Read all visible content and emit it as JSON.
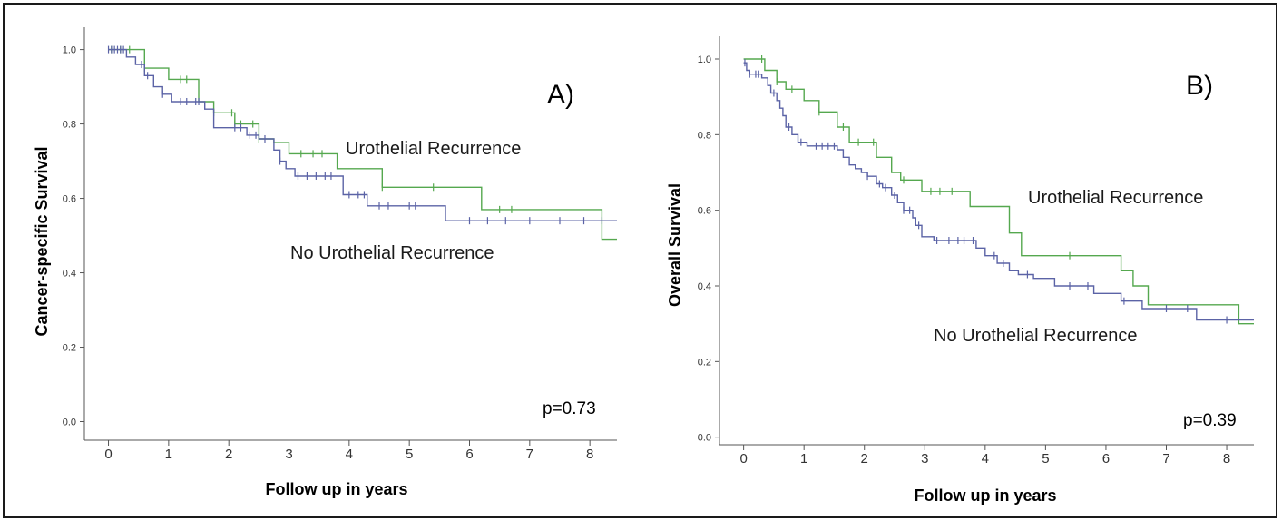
{
  "chart_data": [
    {
      "type": "line",
      "panel_label": "A)",
      "xlabel": "Follow up in years",
      "ylabel": "Cancer-specific Survival",
      "xlim": [
        -0.4,
        8.45
      ],
      "ylim": [
        -0.05,
        1.06
      ],
      "xticks": [
        0,
        1,
        2,
        3,
        4,
        5,
        6,
        7,
        8
      ],
      "yticks": [
        0.0,
        0.2,
        0.4,
        0.6,
        0.8,
        1.0
      ],
      "ytick_labels": [
        "0.0",
        "0.2",
        "0.4",
        "0.6",
        "0.8",
        "1.0"
      ],
      "p_value": "p=0.73",
      "annotations": [
        "Urothelial Recurrence",
        "No Urothelial Recurrence"
      ],
      "series": [
        {
          "color": "#55a84f",
          "steps": [
            [
              0,
              1.0
            ],
            [
              0.6,
              0.95
            ],
            [
              1.0,
              0.92
            ],
            [
              1.5,
              0.86
            ],
            [
              1.75,
              0.83
            ],
            [
              2.1,
              0.8
            ],
            [
              2.5,
              0.76
            ],
            [
              2.75,
              0.75
            ],
            [
              3.0,
              0.72
            ],
            [
              3.8,
              0.68
            ],
            [
              4.55,
              0.63
            ],
            [
              6.2,
              0.57
            ],
            [
              8.2,
              0.49
            ],
            [
              8.45,
              0.49
            ]
          ],
          "censor_x": [
            0.05,
            0.2,
            0.35,
            0.6,
            1.2,
            1.3,
            1.75,
            2.05,
            2.1,
            2.2,
            2.4,
            2.5,
            3.2,
            3.4,
            3.55,
            4.55,
            5.4,
            6.5,
            6.7
          ]
        },
        {
          "color": "#5b63a6",
          "steps": [
            [
              0,
              1.0
            ],
            [
              0.3,
              0.98
            ],
            [
              0.45,
              0.96
            ],
            [
              0.6,
              0.93
            ],
            [
              0.75,
              0.9
            ],
            [
              0.9,
              0.88
            ],
            [
              1.05,
              0.86
            ],
            [
              1.6,
              0.84
            ],
            [
              1.75,
              0.79
            ],
            [
              2.3,
              0.77
            ],
            [
              2.5,
              0.76
            ],
            [
              2.75,
              0.73
            ],
            [
              2.85,
              0.7
            ],
            [
              2.95,
              0.68
            ],
            [
              3.1,
              0.66
            ],
            [
              3.9,
              0.61
            ],
            [
              4.3,
              0.58
            ],
            [
              5.6,
              0.54
            ],
            [
              8.45,
              0.54
            ]
          ],
          "censor_x": [
            0.0,
            0.05,
            0.1,
            0.15,
            0.2,
            0.25,
            0.55,
            0.65,
            0.9,
            1.2,
            1.3,
            1.45,
            1.5,
            2.1,
            2.2,
            2.35,
            2.45,
            2.6,
            2.85,
            3.15,
            3.3,
            3.45,
            3.6,
            3.7,
            4.0,
            4.15,
            4.25,
            4.5,
            4.65,
            5.0,
            5.1,
            6.0,
            6.3,
            6.6,
            7.0,
            7.5,
            7.9,
            8.2
          ]
        }
      ]
    },
    {
      "type": "line",
      "panel_label": "B)",
      "xlabel": "Follow up in years",
      "ylabel": "Overall Survival",
      "xlim": [
        -0.4,
        8.45
      ],
      "ylim": [
        -0.02,
        1.06
      ],
      "xticks": [
        0,
        1,
        2,
        3,
        4,
        5,
        6,
        7,
        8
      ],
      "yticks": [
        0.0,
        0.2,
        0.4,
        0.6,
        0.8,
        1.0
      ],
      "ytick_labels": [
        "0.0",
        "0.2",
        "0.4",
        "0.6",
        "0.8",
        "1.0"
      ],
      "p_value": "p=0.39",
      "annotations": [
        "Urothelial Recurrence",
        "No Urothelial Recurrence"
      ],
      "series": [
        {
          "color": "#55a84f",
          "steps": [
            [
              0,
              1.0
            ],
            [
              0.35,
              0.97
            ],
            [
              0.55,
              0.94
            ],
            [
              0.7,
              0.92
            ],
            [
              1.0,
              0.89
            ],
            [
              1.25,
              0.86
            ],
            [
              1.55,
              0.82
            ],
            [
              1.75,
              0.78
            ],
            [
              2.2,
              0.74
            ],
            [
              2.45,
              0.7
            ],
            [
              2.6,
              0.68
            ],
            [
              2.95,
              0.65
            ],
            [
              3.75,
              0.61
            ],
            [
              4.4,
              0.54
            ],
            [
              4.6,
              0.48
            ],
            [
              5.8,
              0.48
            ],
            [
              6.25,
              0.44
            ],
            [
              6.45,
              0.4
            ],
            [
              6.7,
              0.35
            ],
            [
              8.2,
              0.3
            ],
            [
              8.45,
              0.3
            ]
          ],
          "censor_x": [
            0.3,
            0.55,
            0.8,
            1.25,
            1.65,
            1.9,
            2.15,
            2.65,
            3.1,
            3.25,
            3.45,
            5.4
          ]
        },
        {
          "color": "#5b63a6",
          "steps": [
            [
              0,
              0.99
            ],
            [
              0.05,
              0.97
            ],
            [
              0.1,
              0.96
            ],
            [
              0.3,
              0.95
            ],
            [
              0.4,
              0.93
            ],
            [
              0.45,
              0.91
            ],
            [
              0.55,
              0.89
            ],
            [
              0.6,
              0.87
            ],
            [
              0.65,
              0.85
            ],
            [
              0.7,
              0.82
            ],
            [
              0.8,
              0.8
            ],
            [
              0.9,
              0.78
            ],
            [
              1.05,
              0.77
            ],
            [
              1.55,
              0.76
            ],
            [
              1.65,
              0.74
            ],
            [
              1.75,
              0.72
            ],
            [
              1.85,
              0.71
            ],
            [
              1.95,
              0.7
            ],
            [
              2.05,
              0.69
            ],
            [
              2.2,
              0.67
            ],
            [
              2.3,
              0.66
            ],
            [
              2.45,
              0.64
            ],
            [
              2.55,
              0.62
            ],
            [
              2.65,
              0.6
            ],
            [
              2.8,
              0.58
            ],
            [
              2.85,
              0.56
            ],
            [
              2.95,
              0.53
            ],
            [
              3.15,
              0.52
            ],
            [
              3.85,
              0.5
            ],
            [
              4.0,
              0.48
            ],
            [
              4.2,
              0.46
            ],
            [
              4.4,
              0.44
            ],
            [
              4.55,
              0.43
            ],
            [
              4.8,
              0.42
            ],
            [
              5.15,
              0.4
            ],
            [
              5.8,
              0.38
            ],
            [
              6.25,
              0.36
            ],
            [
              6.6,
              0.34
            ],
            [
              7.5,
              0.31
            ],
            [
              8.45,
              0.31
            ]
          ],
          "censor_x": [
            0.02,
            0.1,
            0.2,
            0.25,
            0.5,
            0.75,
            0.95,
            1.2,
            1.3,
            1.4,
            1.5,
            2.05,
            2.25,
            2.35,
            2.5,
            2.65,
            2.75,
            2.9,
            3.2,
            3.4,
            3.55,
            3.65,
            3.8,
            4.15,
            4.3,
            4.7,
            5.4,
            5.7,
            6.3,
            7.0,
            7.35,
            8.0
          ]
        }
      ]
    }
  ]
}
